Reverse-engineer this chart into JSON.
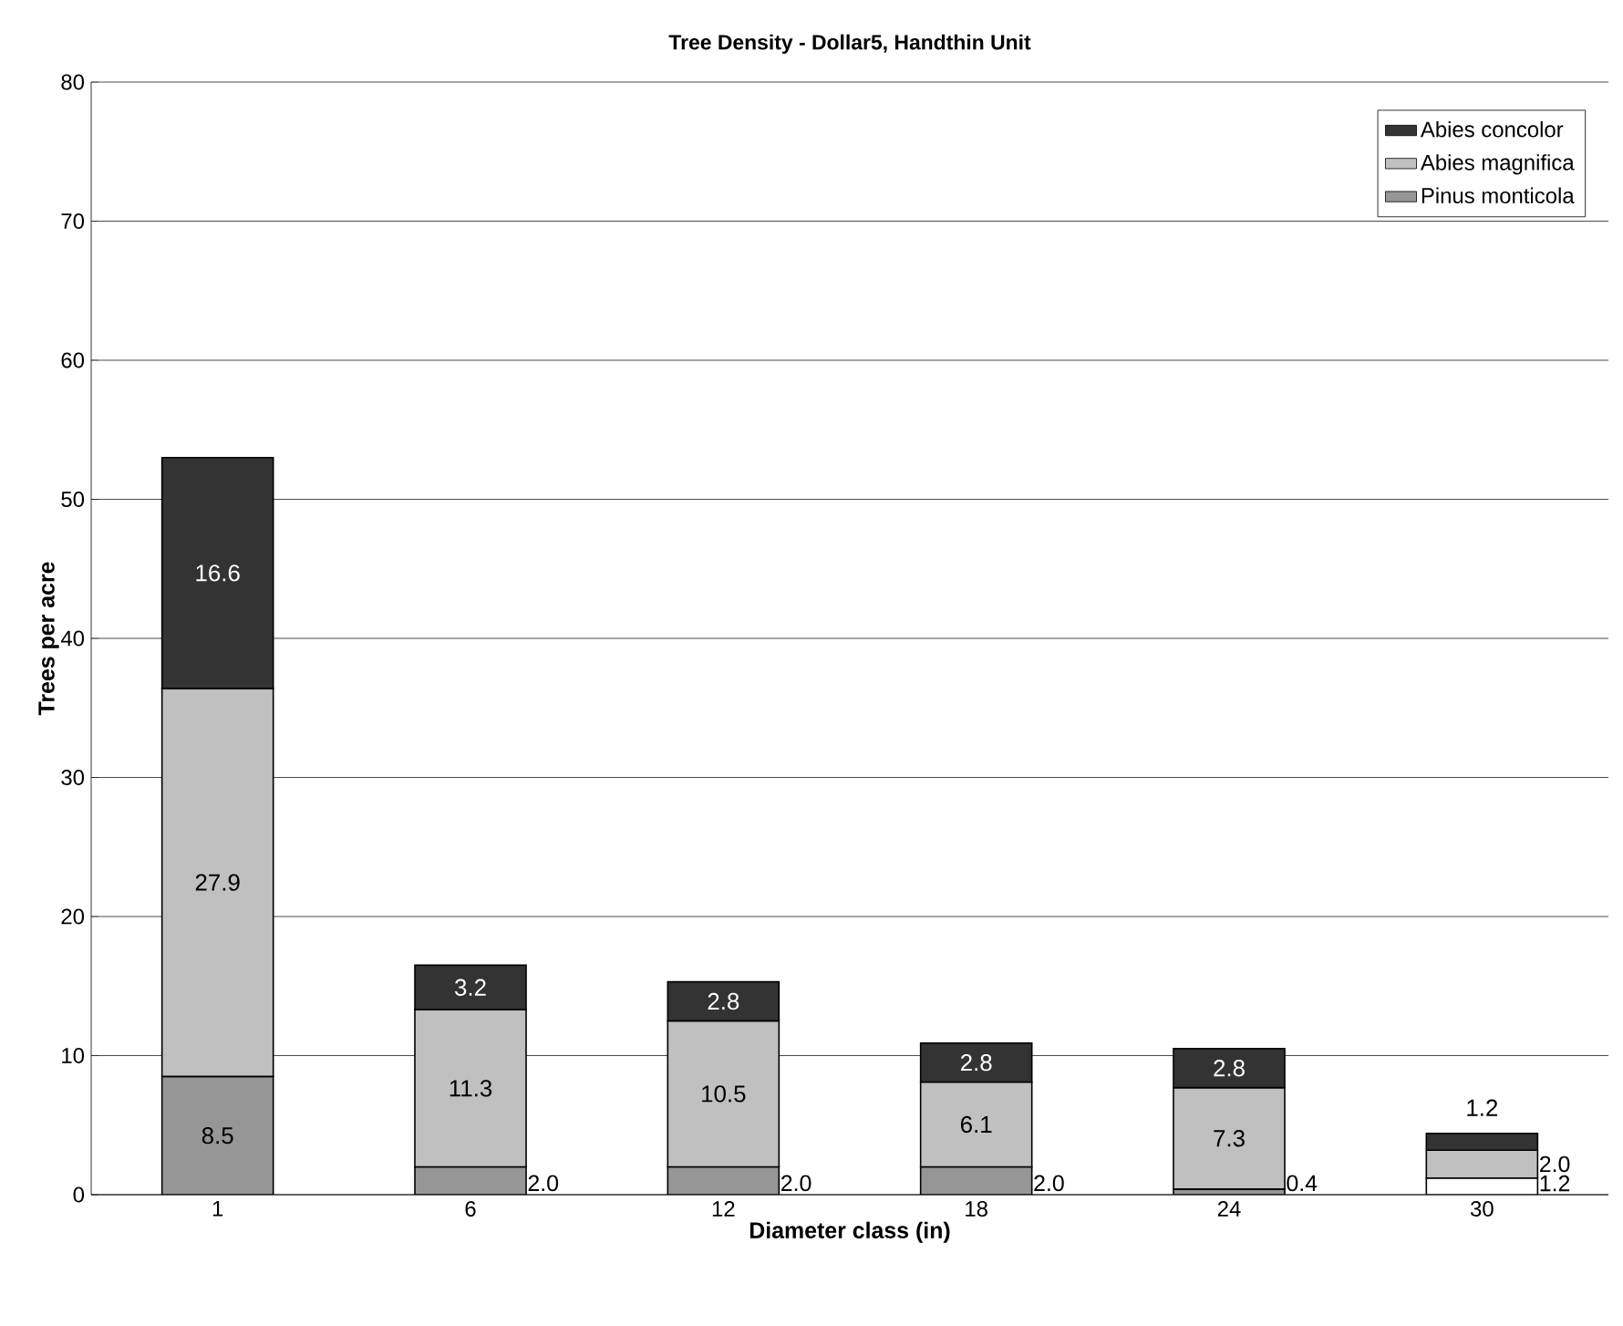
{
  "chart_data": {
    "type": "bar",
    "stacked": true,
    "title": "Tree Density - Dollar5, Handthin Unit",
    "xlabel": "Diameter class (in)",
    "ylabel": "Trees per acre",
    "categories": [
      "1",
      "6",
      "12",
      "18",
      "24",
      "30"
    ],
    "series": [
      {
        "name": "Pinus monticola",
        "color": "#969696",
        "colors": [
          "#969696",
          "#969696",
          "#969696",
          "#969696",
          "#969696",
          "#ffffff"
        ],
        "values": [
          8.5,
          2.0,
          2.0,
          2.0,
          0.4,
          1.2
        ],
        "value_labels": [
          "8.5",
          "2.0",
          "2.0",
          "2.0",
          "0.4",
          "1.2"
        ]
      },
      {
        "name": "Abies magnifica",
        "color": "#c0c0c0",
        "values": [
          27.9,
          11.3,
          10.5,
          6.1,
          7.3,
          2.0
        ],
        "value_labels": [
          "27.9",
          "11.3",
          "10.5",
          "6.1",
          "7.3",
          "2.0"
        ]
      },
      {
        "name": "Abies concolor",
        "color": "#333333",
        "values": [
          16.6,
          3.2,
          2.8,
          2.8,
          2.8,
          1.2
        ],
        "value_labels": [
          "16.6",
          "3.2",
          "2.8",
          "2.8",
          "2.8",
          "1.2"
        ]
      }
    ],
    "ylim": [
      0,
      80
    ],
    "yticks": [
      0,
      10,
      20,
      30,
      40,
      50,
      60,
      70,
      80
    ],
    "grid": "y",
    "legend": "top right"
  }
}
